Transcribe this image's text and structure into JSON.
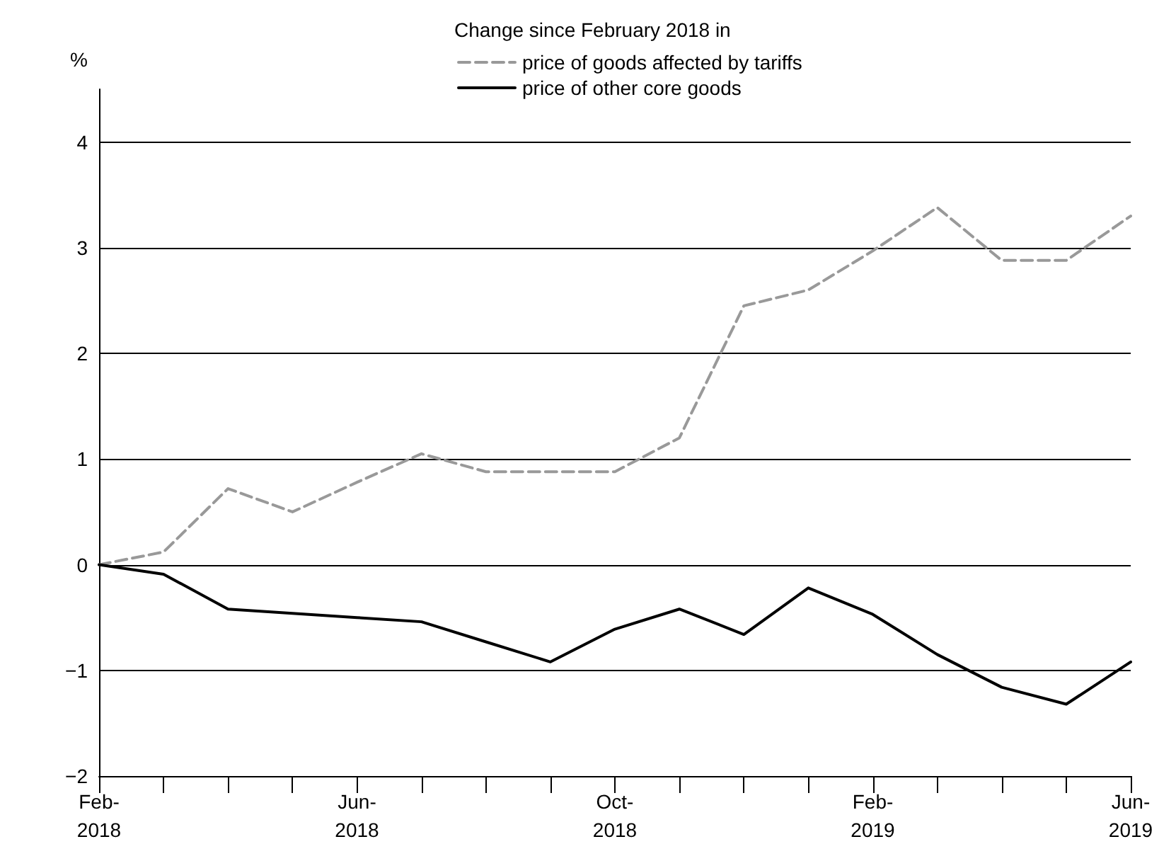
{
  "chart_data": {
    "type": "line",
    "ylabel": "%",
    "legend_title": "Change since February 2018 in",
    "categories": [
      "Feb-\n2018",
      null,
      null,
      null,
      "Jun-\n2018",
      null,
      null,
      null,
      "Oct-\n2018",
      null,
      null,
      null,
      "Feb-\n2019",
      null,
      null,
      null,
      "Jun-\n2019"
    ],
    "series": [
      {
        "name": "price of goods affected by tariffs",
        "color": "#999999",
        "line_style": "dashed",
        "values": [
          0,
          0.12,
          0.72,
          0.5,
          0.78,
          1.05,
          0.88,
          0.88,
          0.88,
          1.2,
          2.45,
          2.6,
          2.97,
          3.38,
          2.88,
          2.88,
          3.3
        ]
      },
      {
        "name": "price of other core goods",
        "color": "#000000",
        "line_style": "solid",
        "values": [
          0,
          -0.09,
          -0.42,
          -0.46,
          -0.5,
          -0.54,
          -0.73,
          -0.92,
          -0.61,
          -0.42,
          -0.66,
          -0.22,
          -0.47,
          -0.85,
          -1.16,
          -1.32,
          -0.92
        ]
      }
    ],
    "ylim": [
      -2,
      4.5
    ],
    "yticks": [
      {
        "value": -2,
        "label": "−2"
      },
      {
        "value": -1,
        "label": "−1"
      },
      0,
      1,
      2,
      3,
      4
    ],
    "grid": "y",
    "legend": "top",
    "marker": "none"
  }
}
